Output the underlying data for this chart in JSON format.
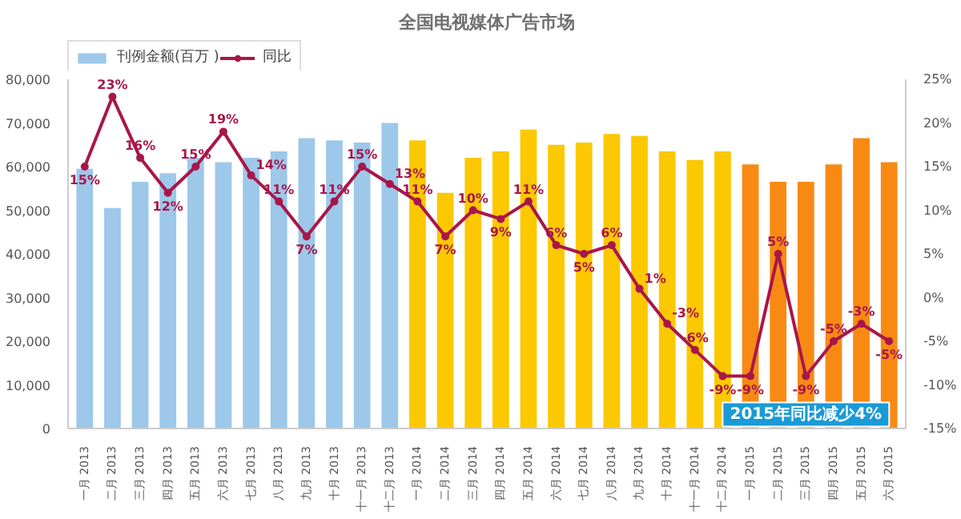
{
  "chart_data": {
    "type": "bar",
    "title": "全国电视媒体广告市场",
    "categories": [
      "一月 2013",
      "二月 2013",
      "三月 2013",
      "四月 2013",
      "五月 2013",
      "六月 2013",
      "七月 2013",
      "八月 2013",
      "九月 2013",
      "十月 2013",
      "十一月 2013",
      "十二月 2013",
      "一月 2014",
      "二月 2014",
      "三月 2014",
      "四月 2014",
      "五月 2014",
      "六月 2014",
      "七月 2014",
      "八月 2014",
      "九月 2014",
      "十月 2014",
      "十一月 2014",
      "十二月 2014",
      "一月 2015",
      "二月 2015",
      "三月 2015",
      "四月 2015",
      "五月 2015",
      "六月 2015"
    ],
    "series": [
      {
        "name": "刊例金额(百万 )",
        "colors": [
          "#9dc8ea",
          "#9dc8ea",
          "#9dc8ea",
          "#9dc8ea",
          "#9dc8ea",
          "#9dc8ea",
          "#9dc8ea",
          "#9dc8ea",
          "#9dc8ea",
          "#9dc8ea",
          "#9dc8ea",
          "#9dc8ea",
          "#fcc800",
          "#fcc800",
          "#fcc800",
          "#fcc800",
          "#fcc800",
          "#fcc800",
          "#fcc800",
          "#fcc800",
          "#fcc800",
          "#fcc800",
          "#fcc800",
          "#fcc800",
          "#f88a14",
          "#f88a14",
          "#f88a14",
          "#f88a14",
          "#f88a14",
          "#f88a14"
        ],
        "values": [
          59500,
          50500,
          56500,
          58500,
          62000,
          61000,
          62000,
          63500,
          66500,
          66000,
          65500,
          70000,
          66000,
          54000,
          62000,
          63500,
          68500,
          65000,
          65500,
          67500,
          67000,
          63500,
          61500,
          63500,
          60500,
          56500,
          56500,
          60500,
          66500,
          61000
        ]
      },
      {
        "name": "同比",
        "type": "line",
        "axis": "y2",
        "color": "#a8174a",
        "marker": "circle",
        "values": [
          15,
          23,
          16,
          12,
          15,
          19,
          14,
          11,
          7,
          11,
          15,
          13,
          11,
          7,
          10,
          9,
          11,
          6,
          5,
          6,
          1,
          -3,
          -6,
          -9,
          -9,
          5,
          -9,
          -5,
          -3,
          -5
        ],
        "value_labels": [
          "15%",
          "23%",
          "16%",
          "12%",
          "15%",
          "19%",
          "14%",
          "11%",
          "7%",
          "11%",
          "15%",
          "13%",
          "11%",
          "7%",
          "10%",
          "9%",
          "11%",
          "6%",
          "5%",
          "6%",
          "1%",
          "-3%",
          "-6%",
          "-9%",
          "-9%",
          "5%",
          "-9%",
          "-5%",
          "-3%",
          "-5%"
        ]
      }
    ],
    "ylim": [
      0,
      80000
    ],
    "yticks": [
      {
        "value": 0,
        "label": "0"
      },
      {
        "value": 10000,
        "label": "10,000"
      },
      {
        "value": 20000,
        "label": "20,000"
      },
      {
        "value": 30000,
        "label": "30,000"
      },
      {
        "value": 40000,
        "label": "40,000"
      },
      {
        "value": 50000,
        "label": "50,000"
      },
      {
        "value": 60000,
        "label": "60,000"
      },
      {
        "value": 70000,
        "label": "70,000"
      },
      {
        "value": 80000,
        "label": "80,000"
      }
    ],
    "y2lim": [
      -15,
      25
    ],
    "y2ticks": [
      {
        "value": -15,
        "label": "-15%"
      },
      {
        "value": -10,
        "label": "-10%"
      },
      {
        "value": -5,
        "label": "-5%"
      },
      {
        "value": 0,
        "label": "0%"
      },
      {
        "value": 5,
        "label": "5%"
      },
      {
        "value": 10,
        "label": "10%"
      },
      {
        "value": 15,
        "label": "15%"
      },
      {
        "value": 20,
        "label": "20%"
      },
      {
        "value": 25,
        "label": "25%"
      }
    ],
    "legend": "top left",
    "grid": false,
    "annotations": [
      "2015年同比减少4%"
    ]
  }
}
